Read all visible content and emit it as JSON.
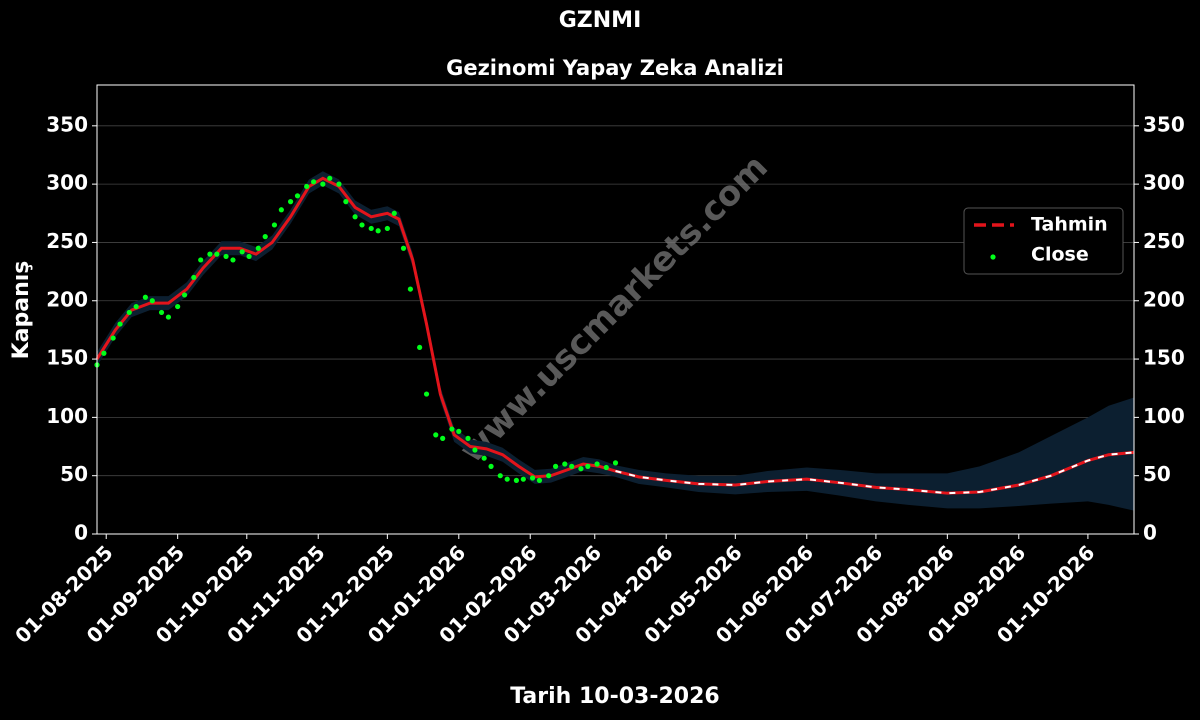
{
  "chart_data": {
    "type": "line",
    "title": "GZNMI",
    "subtitle": "Gezinomi Yapay Zeka Analizi",
    "x_label": "Tarih 10-03-2026",
    "y_label": "Kapanış",
    "watermark": "www.uscmarkets.com",
    "xlim": [
      "2025-07-28",
      "2026-10-21"
    ],
    "ylim": [
      0,
      385
    ],
    "xticks": [
      {
        "value": "2025-08-01",
        "label": "01-08-2025"
      },
      {
        "value": "2025-09-01",
        "label": "01-09-2025"
      },
      {
        "value": "2025-10-01",
        "label": "01-10-2025"
      },
      {
        "value": "2025-11-01",
        "label": "01-11-2025"
      },
      {
        "value": "2025-12-01",
        "label": "01-12-2025"
      },
      {
        "value": "2026-01-01",
        "label": "01-01-2026"
      },
      {
        "value": "2026-02-01",
        "label": "01-02-2026"
      },
      {
        "value": "2026-03-01",
        "label": "01-03-2026"
      },
      {
        "value": "2026-04-01",
        "label": "01-04-2026"
      },
      {
        "value": "2026-05-01",
        "label": "01-05-2026"
      },
      {
        "value": "2026-06-01",
        "label": "01-06-2026"
      },
      {
        "value": "2026-07-01",
        "label": "01-07-2026"
      },
      {
        "value": "2026-08-01",
        "label": "01-08-2026"
      },
      {
        "value": "2026-09-01",
        "label": "01-09-2026"
      },
      {
        "value": "2026-10-01",
        "label": "01-10-2026"
      }
    ],
    "yticks": [
      0,
      50,
      100,
      150,
      200,
      250,
      300,
      350
    ],
    "grid": true,
    "legend": "right",
    "band_color": "#0c1f30",
    "series": [
      {
        "name": "Tahmin",
        "color": "#e3141b",
        "style": "line",
        "x": [
          "2025-07-28",
          "2025-08-05",
          "2025-08-12",
          "2025-08-20",
          "2025-08-28",
          "2025-09-05",
          "2025-09-12",
          "2025-09-20",
          "2025-09-28",
          "2025-10-05",
          "2025-10-12",
          "2025-10-20",
          "2025-10-28",
          "2025-11-03",
          "2025-11-10",
          "2025-11-17",
          "2025-11-24",
          "2025-12-01",
          "2025-12-06",
          "2025-12-12",
          "2025-12-18",
          "2025-12-24",
          "2025-12-30",
          "2026-01-06",
          "2026-01-13",
          "2026-01-20",
          "2026-01-27",
          "2026-02-03",
          "2026-02-10",
          "2026-02-17",
          "2026-02-24",
          "2026-03-03",
          "2026-03-10",
          "2026-03-20",
          "2026-04-01",
          "2026-04-15",
          "2026-05-01",
          "2026-05-15",
          "2026-06-01",
          "2026-06-15",
          "2026-07-01",
          "2026-07-15",
          "2026-08-01",
          "2026-08-15",
          "2026-09-01",
          "2026-09-15",
          "2026-10-01",
          "2026-10-10",
          "2026-10-21"
        ],
        "values": [
          150,
          175,
          192,
          198,
          198,
          210,
          228,
          245,
          245,
          240,
          250,
          272,
          298,
          305,
          298,
          280,
          272,
          275,
          270,
          235,
          180,
          120,
          85,
          75,
          73,
          68,
          58,
          49,
          50,
          55,
          60,
          58,
          54,
          49,
          46,
          43,
          42,
          45,
          47,
          44,
          40,
          38,
          35,
          36,
          42,
          50,
          63,
          68,
          70
        ],
        "upper": [
          156,
          181,
          198,
          204,
          204,
          216,
          234,
          251,
          251,
          246,
          256,
          278,
          304,
          311,
          304,
          286,
          278,
          281,
          276,
          241,
          186,
          126,
          91,
          81,
          79,
          74,
          64,
          55,
          56,
          61,
          66,
          64,
          59,
          55,
          52,
          50,
          50,
          54,
          57,
          55,
          52,
          52,
          52,
          58,
          70,
          84,
          100,
          110,
          117
        ],
        "lower": [
          144,
          169,
          186,
          192,
          192,
          204,
          222,
          239,
          239,
          234,
          244,
          266,
          292,
          299,
          292,
          274,
          266,
          269,
          264,
          229,
          174,
          114,
          79,
          69,
          67,
          62,
          52,
          43,
          44,
          49,
          54,
          52,
          49,
          43,
          40,
          36,
          34,
          36,
          37,
          33,
          28,
          25,
          22,
          22,
          24,
          26,
          28,
          25,
          20
        ]
      },
      {
        "name": "Close",
        "color": "#00ff1a",
        "style": "scatter",
        "x": [
          "2025-07-28",
          "2025-07-31",
          "2025-08-04",
          "2025-08-07",
          "2025-08-11",
          "2025-08-14",
          "2025-08-18",
          "2025-08-21",
          "2025-08-25",
          "2025-08-28",
          "2025-09-01",
          "2025-09-04",
          "2025-09-08",
          "2025-09-11",
          "2025-09-15",
          "2025-09-18",
          "2025-09-22",
          "2025-09-25",
          "2025-09-29",
          "2025-10-02",
          "2025-10-06",
          "2025-10-09",
          "2025-10-13",
          "2025-10-16",
          "2025-10-20",
          "2025-10-23",
          "2025-10-27",
          "2025-10-30",
          "2025-11-03",
          "2025-11-06",
          "2025-11-10",
          "2025-11-13",
          "2025-11-17",
          "2025-11-20",
          "2025-11-24",
          "2025-11-27",
          "2025-12-01",
          "2025-12-04",
          "2025-12-08",
          "2025-12-11",
          "2025-12-15",
          "2025-12-18",
          "2025-12-22",
          "2025-12-25",
          "2025-12-29",
          "2026-01-01",
          "2026-01-05",
          "2026-01-08",
          "2026-01-12",
          "2026-01-15",
          "2026-01-19",
          "2026-01-22",
          "2026-01-26",
          "2026-01-29",
          "2026-02-02",
          "2026-02-05",
          "2026-02-09",
          "2026-02-12",
          "2026-02-16",
          "2026-02-19",
          "2026-02-23",
          "2026-02-26",
          "2026-03-02",
          "2026-03-06",
          "2026-03-10"
        ],
        "values": [
          145,
          155,
          168,
          180,
          190,
          195,
          203,
          200,
          190,
          186,
          195,
          205,
          220,
          235,
          240,
          240,
          238,
          235,
          242,
          238,
          245,
          255,
          265,
          278,
          285,
          290,
          298,
          302,
          300,
          305,
          300,
          285,
          272,
          265,
          262,
          260,
          262,
          275,
          245,
          210,
          160,
          120,
          85,
          82,
          90,
          88,
          82,
          72,
          65,
          58,
          50,
          47,
          46,
          47,
          48,
          46,
          50,
          58,
          60,
          58,
          56,
          58,
          60,
          57,
          61
        ]
      }
    ]
  }
}
